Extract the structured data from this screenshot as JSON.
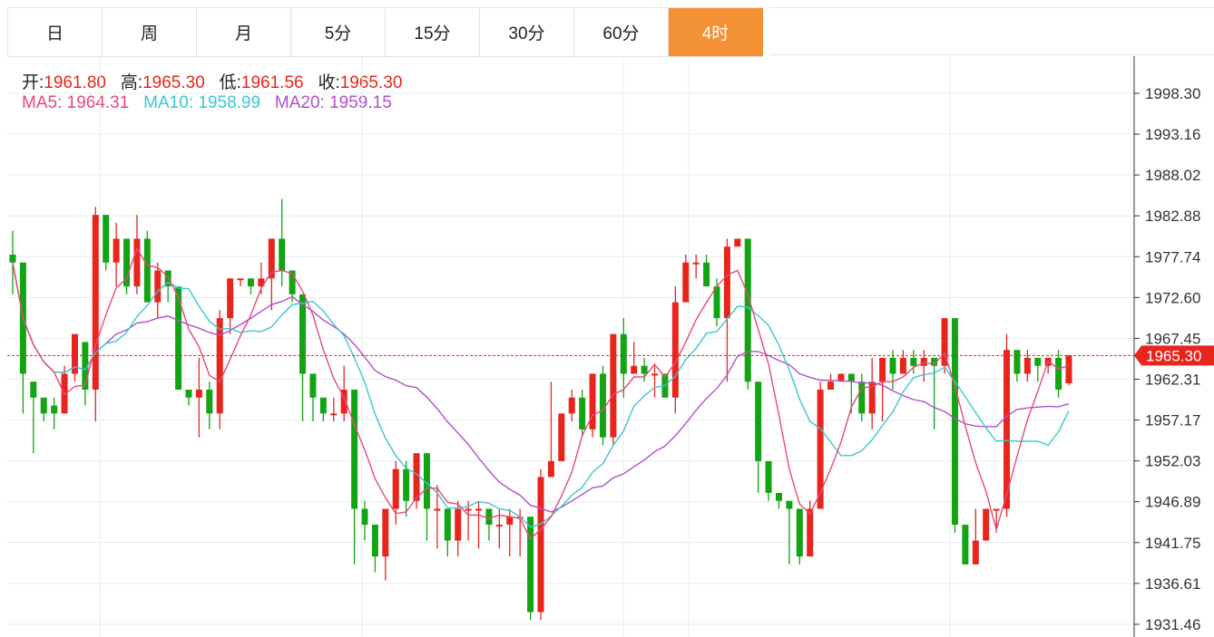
{
  "tabs": [
    {
      "label": "日",
      "active": false
    },
    {
      "label": "周",
      "active": false
    },
    {
      "label": "月",
      "active": false
    },
    {
      "label": "5分",
      "active": false
    },
    {
      "label": "15分",
      "active": false
    },
    {
      "label": "30分",
      "active": false
    },
    {
      "label": "60分",
      "active": false
    },
    {
      "label": "4时",
      "active": true
    }
  ],
  "ohlc": {
    "open_label": "开:",
    "open": "1961.80",
    "high_label": "高:",
    "high": "1965.30",
    "low_label": "低:",
    "low": "1961.56",
    "close_label": "收:",
    "close": "1965.30"
  },
  "ma": {
    "ma5_label": "MA5:",
    "ma5": "1964.31",
    "ma10_label": "MA10:",
    "ma10": "1958.99",
    "ma20_label": "MA20:",
    "ma20": "1959.15"
  },
  "colors": {
    "up": "#e8251c",
    "down": "#13a413",
    "ma5": "#e8487c",
    "ma10": "#3cc6d2",
    "ma20": "#b150c8",
    "accent": "#f39137"
  },
  "chart_data": {
    "type": "candlestick",
    "y_ticks": [
      "1998.30",
      "1993.16",
      "1988.02",
      "1982.88",
      "1977.74",
      "1972.60",
      "1967.45",
      "1962.31",
      "1957.17",
      "1952.03",
      "1946.89",
      "1941.75",
      "1936.61",
      "1931.46"
    ],
    "ylim": [
      1931.46,
      1998.3
    ],
    "current_price": "1965.30",
    "candles": [
      [
        1978,
        1977,
        1981,
        1973
      ],
      [
        1977,
        1963,
        1977,
        1958
      ],
      [
        1962,
        1960,
        1962,
        1953
      ],
      [
        1960,
        1958,
        1960,
        1957
      ],
      [
        1959,
        1958,
        1960,
        1956
      ],
      [
        1958,
        1963,
        1964,
        1958
      ],
      [
        1963,
        1968,
        1968,
        1962
      ],
      [
        1967,
        1961,
        1967,
        1959
      ],
      [
        1961,
        1983,
        1984,
        1957
      ],
      [
        1983,
        1977,
        1983,
        1976
      ],
      [
        1977,
        1980,
        1982,
        1974
      ],
      [
        1980,
        1974,
        1980,
        1973
      ],
      [
        1974,
        1980,
        1983,
        1973
      ],
      [
        1980,
        1972,
        1981,
        1972
      ],
      [
        1972,
        1976,
        1977,
        1970
      ],
      [
        1976,
        1974,
        1976,
        1972
      ],
      [
        1974,
        1961,
        1974,
        1961
      ],
      [
        1961,
        1960,
        1961,
        1959
      ],
      [
        1960,
        1961,
        1965,
        1955
      ],
      [
        1961,
        1958,
        1962,
        1956
      ],
      [
        1958,
        1970,
        1971,
        1956
      ],
      [
        1970,
        1975,
        1975,
        1968
      ],
      [
        1975,
        1975,
        1975,
        1974
      ],
      [
        1975,
        1974,
        1975,
        1973
      ],
      [
        1974,
        1975,
        1977,
        1973
      ],
      [
        1975,
        1980,
        1980,
        1971
      ],
      [
        1980,
        1976,
        1985,
        1974
      ],
      [
        1976,
        1973,
        1976,
        1972
      ],
      [
        1973,
        1963,
        1973,
        1957
      ],
      [
        1963,
        1960,
        1963,
        1957
      ],
      [
        1960,
        1958,
        1960,
        1957
      ],
      [
        1958,
        1958,
        1960,
        1957
      ],
      [
        1958,
        1961,
        1964,
        1957
      ],
      [
        1961,
        1946,
        1961,
        1939
      ],
      [
        1946,
        1944,
        1947,
        1942
      ],
      [
        1944,
        1940,
        1944,
        1938
      ],
      [
        1940,
        1946,
        1946,
        1937
      ],
      [
        1946,
        1951,
        1952,
        1944
      ],
      [
        1951,
        1947,
        1952,
        1945
      ],
      [
        1947,
        1953,
        1953,
        1946
      ],
      [
        1953,
        1946,
        1953,
        1942
      ],
      [
        1946,
        1946,
        1949,
        1941
      ],
      [
        1946,
        1942,
        1946,
        1940
      ],
      [
        1942,
        1946,
        1947,
        1940
      ],
      [
        1946,
        1946,
        1947,
        1942
      ],
      [
        1946,
        1946,
        1947,
        1941
      ],
      [
        1946,
        1944,
        1946,
        1942
      ],
      [
        1944,
        1944,
        1946,
        1941
      ],
      [
        1944,
        1945,
        1946,
        1940
      ],
      [
        1945,
        1945,
        1946,
        1940
      ],
      [
        1945,
        1933,
        1945,
        1932
      ],
      [
        1933,
        1950,
        1951,
        1932
      ],
      [
        1950,
        1952,
        1962,
        1950
      ],
      [
        1952,
        1958,
        1958,
        1953
      ],
      [
        1958,
        1960,
        1961,
        1957
      ],
      [
        1960,
        1956,
        1961,
        1955
      ],
      [
        1956,
        1963,
        1963,
        1955
      ],
      [
        1963,
        1955,
        1964,
        1954
      ],
      [
        1955,
        1968,
        1968,
        1954
      ],
      [
        1968,
        1963,
        1970,
        1960
      ],
      [
        1963,
        1964,
        1967,
        1963
      ],
      [
        1964,
        1963,
        1965,
        1962
      ],
      [
        1963,
        1963,
        1964,
        1960
      ],
      [
        1963,
        1960,
        1963,
        1960
      ],
      [
        1960,
        1972,
        1974,
        1958
      ],
      [
        1972,
        1977,
        1978,
        1974
      ],
      [
        1977,
        1977,
        1978,
        1975
      ],
      [
        1977,
        1974,
        1978,
        1974
      ],
      [
        1974,
        1970,
        1975,
        1969
      ],
      [
        1970,
        1979,
        1980,
        1962
      ],
      [
        1979,
        1980,
        1980,
        1980
      ],
      [
        1980,
        1962,
        1976,
        1961
      ],
      [
        1962,
        1952,
        1962,
        1948
      ],
      [
        1952,
        1948,
        1949,
        1947
      ],
      [
        1948,
        1947,
        1947,
        1946
      ],
      [
        1947,
        1946,
        1947,
        1939
      ],
      [
        1946,
        1940,
        1941,
        1939
      ],
      [
        1940,
        1946,
        1947,
        1945
      ],
      [
        1946,
        1961,
        1962,
        1946
      ],
      [
        1961,
        1962,
        1963,
        1961
      ],
      [
        1962,
        1963,
        1963,
        1962
      ],
      [
        1963,
        1962,
        1963,
        1958
      ],
      [
        1962,
        1958,
        1963,
        1957
      ],
      [
        1958,
        1962,
        1965,
        1956
      ],
      [
        1962,
        1965,
        1965,
        1957
      ],
      [
        1965,
        1963,
        1966,
        1961
      ],
      [
        1963,
        1965,
        1966,
        1963
      ],
      [
        1965,
        1964,
        1966,
        1963
      ],
      [
        1964,
        1965,
        1966,
        1962
      ],
      [
        1965,
        1964,
        1965,
        1956
      ],
      [
        1964,
        1970,
        1970,
        1963
      ],
      [
        1970,
        1944,
        1970,
        1943
      ],
      [
        1944,
        1939,
        1944,
        1939
      ],
      [
        1939,
        1942,
        1946,
        1940
      ],
      [
        1942,
        1946,
        1946,
        1942
      ],
      [
        1946,
        1946,
        1946,
        1943
      ],
      [
        1946,
        1966,
        1968,
        1945
      ],
      [
        1966,
        1963,
        1966,
        1962
      ],
      [
        1963,
        1965,
        1966,
        1962
      ],
      [
        1965,
        1964,
        1965,
        1962
      ],
      [
        1964,
        1965,
        1965,
        1963
      ],
      [
        1965,
        1961,
        1966,
        1960
      ],
      [
        1961.8,
        1965.3,
        1965.3,
        1961.56
      ]
    ]
  }
}
